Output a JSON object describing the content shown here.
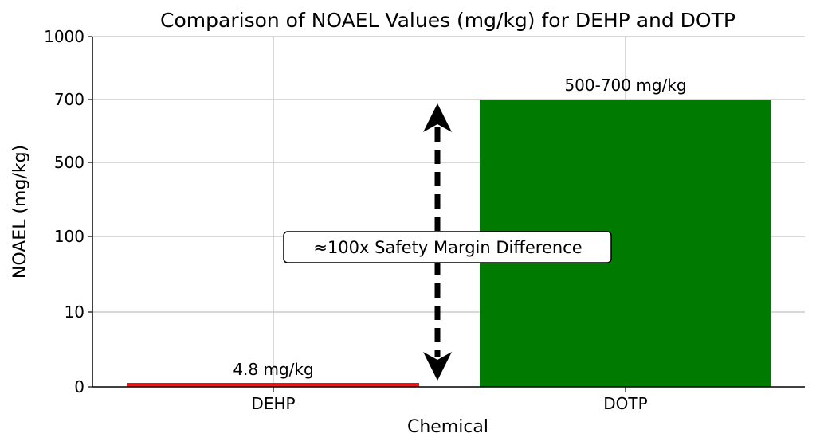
{
  "chart_data": {
    "type": "bar",
    "title": "Comparison of NOAEL Values (mg/kg) for DEHP and DOTP",
    "xlabel": "Chemical",
    "ylabel": "NOAEL (mg/kg)",
    "categories": [
      "DEHP",
      "DOTP"
    ],
    "values": [
      4.8,
      700
    ],
    "bar_labels": [
      "4.8 mg/kg",
      "500-700 mg/kg"
    ],
    "colors": [
      "#e31a1c",
      "#007a00"
    ],
    "yticks": [
      0,
      10,
      100,
      500,
      700,
      1000
    ],
    "ylim": [
      0,
      1000
    ],
    "grid": true,
    "annotation": {
      "text": "≈100x Safety Margin Difference",
      "arrow": "double-headed dashed, from DEHP level to DOTP level"
    }
  }
}
